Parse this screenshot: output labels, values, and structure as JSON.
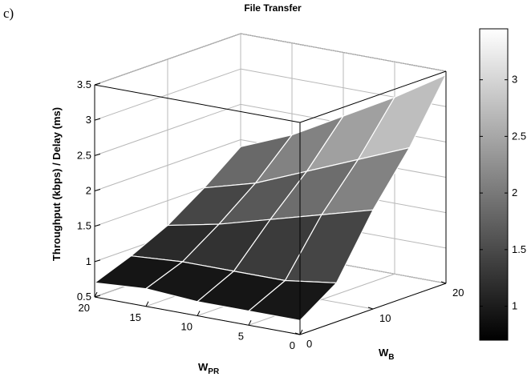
{
  "panel_label": "c)",
  "chart_data": {
    "type": "surface",
    "title": "File Transfer",
    "xlabel": "W",
    "xlabel_sub": "PR",
    "ylabel": "W",
    "ylabel_sub": "B",
    "zlabel": "Throughput (kbps) / Delay (ms)",
    "xlim": [
      0,
      20
    ],
    "ylim": [
      0,
      20
    ],
    "zlim": [
      0.5,
      3.5
    ],
    "x_ticks": [
      "0",
      "5",
      "10",
      "15",
      "20"
    ],
    "y_ticks": [
      "0",
      "10",
      "20"
    ],
    "z_ticks": [
      "0.5",
      "1",
      "1.5",
      "2",
      "2.5",
      "3",
      "3.5"
    ],
    "grid": true,
    "colormap": "gray",
    "colorbar": {
      "range": [
        0.7,
        3.45
      ],
      "ticks": [
        "1",
        "1.5",
        "2",
        "2.5",
        "3"
      ]
    },
    "x": [
      0,
      5,
      10,
      15,
      20
    ],
    "y": [
      0,
      5,
      10,
      15,
      20
    ],
    "z": [
      [
        0.7,
        1.05,
        1.9,
        2.6,
        3.45
      ],
      [
        0.7,
        0.95,
        1.7,
        2.3,
        3.0
      ],
      [
        0.7,
        0.95,
        1.5,
        2.0,
        2.6
      ],
      [
        0.75,
        0.95,
        1.3,
        1.7,
        2.2
      ],
      [
        0.7,
        0.9,
        1.15,
        1.5,
        1.9
      ]
    ]
  }
}
